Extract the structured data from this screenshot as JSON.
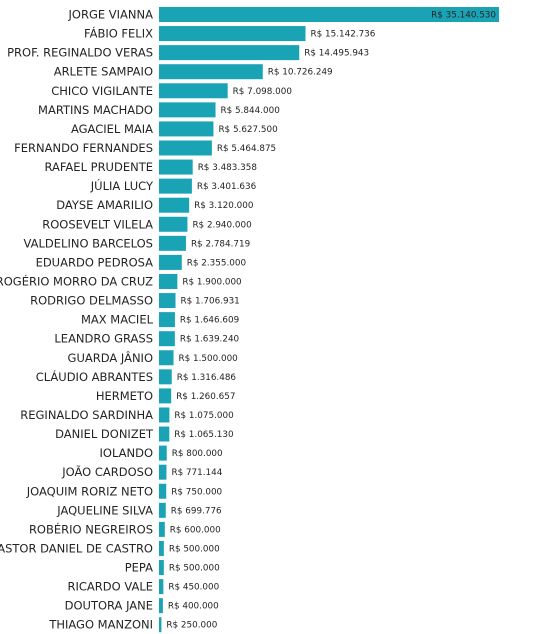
{
  "chart_data": {
    "type": "bar",
    "orientation": "horizontal",
    "categories": [
      "JORGE VIANNA",
      "FÁBIO FELIX",
      "PROF. REGINALDO VERAS",
      "ARLETE SAMPAIO",
      "CHICO VIGILANTE",
      "MARTINS MACHADO",
      "AGACIEL MAIA",
      "FERNANDO FERNANDES",
      "RAFAEL PRUDENTE",
      "JÚLIA LUCY",
      "DAYSE AMARILIO",
      "ROOSEVELT VILELA",
      "VALDELINO BARCELOS",
      "EDUARDO PEDROSA",
      "ROGÉRIO MORRO DA CRUZ",
      "RODRIGO DELMASSO",
      "MAX MACIEL",
      "LEANDRO GRASS",
      "GUARDA JÂNIO",
      "CLÁUDIO ABRANTES",
      "HERMETO",
      "REGINALDO SARDINHA",
      "DANIEL DONIZET",
      "IOLANDO",
      "JOÃO CARDOSO",
      "JOAQUIM RORIZ NETO",
      "JAQUELINE SILVA",
      "ROBÉRIO NEGREIROS",
      "PASTOR DANIEL DE CASTRO",
      "PEPA",
      "RICARDO VALE",
      "DOUTORA JANE",
      "THIAGO MANZONI"
    ],
    "values": [
      35140530,
      15142736,
      14495943,
      10726249,
      7098000,
      5844000,
      5627500,
      5464875,
      3483358,
      3401636,
      3120000,
      2940000,
      2784719,
      2355000,
      1900000,
      1706931,
      1646609,
      1639240,
      1500000,
      1316486,
      1260657,
      1075000,
      1065130,
      800000,
      771144,
      750000,
      699776,
      600000,
      500000,
      500000,
      450000,
      400000,
      250000
    ],
    "value_labels": [
      "R$ 35.140.530",
      "R$ 15.142.736",
      "R$ 14.495.943",
      "R$ 10.726.249",
      "R$ 7.098.000",
      "R$ 5.844.000",
      "R$ 5.627.500",
      "R$ 5.464.875",
      "R$ 3.483.358",
      "R$ 3.401.636",
      "R$ 3.120.000",
      "R$ 2.940.000",
      "R$ 2.784.719",
      "R$ 2.355.000",
      "R$ 1.900.000",
      "R$ 1.706.931",
      "R$ 1.646.609",
      "R$ 1.639.240",
      "R$ 1.500.000",
      "R$ 1.316.486",
      "R$ 1.260.657",
      "R$ 1.075.000",
      "R$ 1.065.130",
      "R$ 800.000",
      "R$ 771.144",
      "R$ 750.000",
      "R$ 699.776",
      "R$ 600.000",
      "R$ 500.000",
      "R$ 500.000",
      "R$ 450.000",
      "R$ 400.000",
      "R$ 250.000"
    ],
    "title": "",
    "xlabel": "",
    "ylabel": "",
    "xlim": [
      0,
      35140530
    ],
    "grid": false,
    "legend": "none",
    "bar_color": "#1aa3b4"
  }
}
